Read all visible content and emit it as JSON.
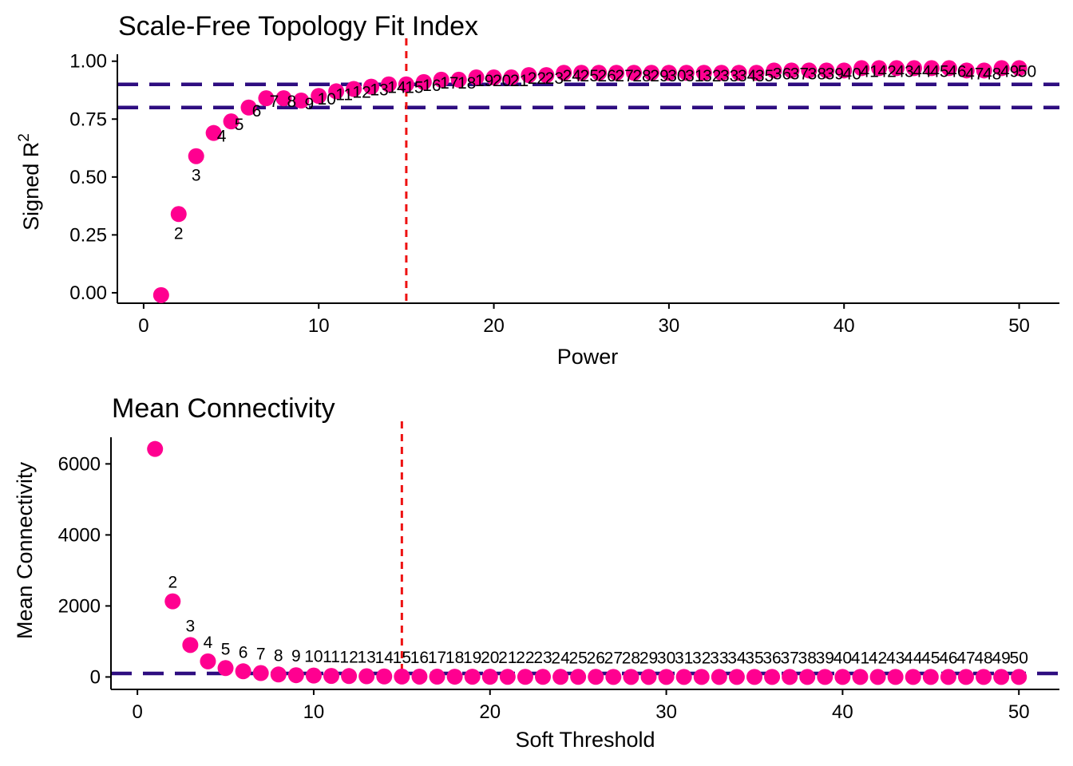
{
  "chart_data": [
    {
      "type": "scatter",
      "title": "Scale-Free Topology Fit Index",
      "xlabel": "Power",
      "ylabel": "Signed R",
      "ylabel_superscript": "2",
      "xlim": [
        -1.5,
        52.3
      ],
      "ylim": [
        -0.045,
        1.03
      ],
      "x_ticks": [
        0,
        10,
        20,
        30,
        40,
        50
      ],
      "y_ticks": [
        0.0,
        0.25,
        0.5,
        0.75,
        1.0
      ],
      "y_tick_labels": [
        "0.00",
        "0.25",
        "0.50",
        "0.75",
        "1.00"
      ],
      "point_color": "#ff0090",
      "hline_color": "#2e0d80",
      "vline_color": "#ee1111",
      "hlines": [
        0.9,
        0.8
      ],
      "vline": 15,
      "x": [
        1,
        2,
        3,
        4,
        5,
        6,
        7,
        8,
        9,
        10,
        11,
        12,
        13,
        14,
        15,
        16,
        17,
        18,
        19,
        20,
        21,
        22,
        23,
        24,
        25,
        26,
        27,
        28,
        29,
        30,
        31,
        32,
        33,
        34,
        35,
        36,
        37,
        38,
        39,
        40,
        41,
        42,
        43,
        44,
        45,
        46,
        47,
        48,
        49,
        50
      ],
      "y": [
        -0.01,
        0.34,
        0.59,
        0.69,
        0.74,
        0.8,
        0.84,
        0.84,
        0.83,
        0.85,
        0.87,
        0.88,
        0.89,
        0.9,
        0.9,
        0.91,
        0.92,
        0.92,
        0.93,
        0.93,
        0.93,
        0.94,
        0.94,
        0.95,
        0.95,
        0.95,
        0.95,
        0.95,
        0.95,
        0.95,
        0.95,
        0.95,
        0.95,
        0.95,
        0.95,
        0.96,
        0.96,
        0.96,
        0.96,
        0.96,
        0.97,
        0.97,
        0.97,
        0.97,
        0.97,
        0.97,
        0.96,
        0.96,
        0.97,
        0.97
      ],
      "labels": [
        "",
        "2",
        "3",
        "4",
        "5",
        "6",
        "7",
        "8",
        "9",
        "10",
        "11",
        "12",
        "13",
        "14",
        "15",
        "16",
        "17",
        "18",
        "19",
        "20",
        "21",
        "22",
        "23",
        "24",
        "25",
        "26",
        "27",
        "28",
        "29",
        "30",
        "31",
        "32",
        "33",
        "34",
        "35",
        "36",
        "37",
        "38",
        "39",
        "40",
        "41",
        "42",
        "43",
        "44",
        "45",
        "46",
        "47",
        "48",
        "49",
        "50"
      ]
    },
    {
      "type": "scatter",
      "title": "Mean Connectivity",
      "xlabel": "Soft Threshold",
      "ylabel": "Mean Connectivity",
      "xlim": [
        -1.5,
        52.3
      ],
      "ylim": [
        -350,
        6750
      ],
      "x_ticks": [
        0,
        10,
        20,
        30,
        40,
        50
      ],
      "y_ticks": [
        0,
        2000,
        4000,
        6000
      ],
      "y_tick_labels": [
        "0",
        "2000",
        "4000",
        "6000"
      ],
      "point_color": "#ff0090",
      "hline_color": "#2e0d80",
      "vline_color": "#ee1111",
      "hlines": [
        100
      ],
      "vline": 15,
      "x": [
        1,
        2,
        3,
        4,
        5,
        6,
        7,
        8,
        9,
        10,
        11,
        12,
        13,
        14,
        15,
        16,
        17,
        18,
        19,
        20,
        21,
        22,
        23,
        24,
        25,
        26,
        27,
        28,
        29,
        30,
        31,
        32,
        33,
        34,
        35,
        36,
        37,
        38,
        39,
        40,
        41,
        42,
        43,
        44,
        45,
        46,
        47,
        48,
        49,
        50
      ],
      "y": [
        6420,
        2130,
        900,
        440,
        250,
        160,
        110,
        70,
        50,
        40,
        30,
        25,
        20,
        15,
        12,
        10,
        9,
        8,
        7,
        6,
        5,
        4,
        4,
        3,
        3,
        3,
        2,
        2,
        2,
        2,
        2,
        1,
        1,
        1,
        1,
        1,
        1,
        1,
        1,
        1,
        1,
        1,
        1,
        1,
        1,
        0,
        0,
        0,
        0,
        0
      ],
      "labels": [
        "",
        "2",
        "3",
        "4",
        "5",
        "6",
        "7",
        "8",
        "9",
        "10",
        "11",
        "12",
        "13",
        "14",
        "15",
        "16",
        "17",
        "18",
        "19",
        "20",
        "21",
        "22",
        "23",
        "24",
        "25",
        "26",
        "27",
        "28",
        "29",
        "30",
        "31",
        "32",
        "33",
        "34",
        "35",
        "36",
        "37",
        "38",
        "39",
        "40",
        "41",
        "42",
        "43",
        "44",
        "45",
        "46",
        "47",
        "48",
        "49",
        "50"
      ]
    }
  ]
}
